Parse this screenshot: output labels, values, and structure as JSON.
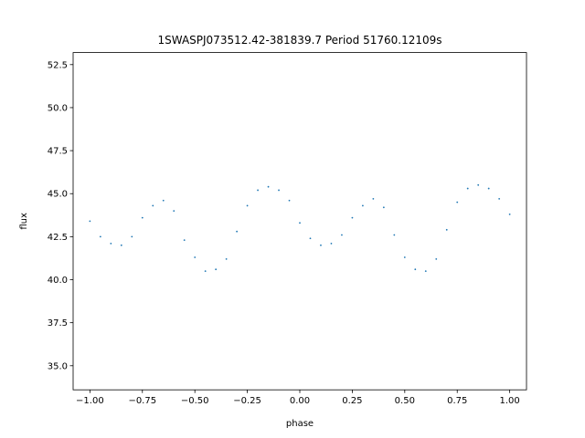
{
  "chart_data": {
    "type": "scatter",
    "title": "1SWASPJ073512.42-381839.7 Period 51760.12109s",
    "xlabel": "phase",
    "ylabel": "flux",
    "xlim": [
      -1.08,
      1.08
    ],
    "ylim": [
      33.6,
      53.2
    ],
    "xticks": [
      -1.0,
      -0.75,
      -0.5,
      -0.25,
      0.0,
      0.25,
      0.5,
      0.75,
      1.0
    ],
    "xtick_labels": [
      "−1.00",
      "−0.75",
      "−0.50",
      "−0.25",
      "0.00",
      "0.25",
      "0.50",
      "0.75",
      "1.00"
    ],
    "yticks": [
      35.0,
      37.5,
      40.0,
      42.5,
      45.0,
      47.5,
      50.0,
      52.5
    ],
    "ytick_labels": [
      "35.0",
      "37.5",
      "40.0",
      "42.5",
      "45.0",
      "47.5",
      "50.0",
      "52.5"
    ],
    "grid": false,
    "marker_color": "#1f77b4",
    "series": [
      {
        "x": [
          -1.0,
          -0.95,
          -0.9,
          -0.85,
          -0.8,
          -0.75,
          -0.7,
          -0.65,
          -0.6,
          -0.55,
          -0.5,
          -0.45,
          -0.4,
          -0.35,
          -0.3,
          -0.25,
          -0.2,
          -0.15,
          -0.1,
          -0.05,
          0.0,
          0.05,
          0.1,
          0.15,
          0.2,
          0.25,
          0.3,
          0.35,
          0.4,
          0.45,
          0.5,
          0.55,
          0.6,
          0.65,
          0.7,
          0.75,
          0.8,
          0.85,
          0.9,
          0.95,
          1.0
        ],
        "y": [
          43.4,
          42.5,
          42.1,
          42.0,
          42.5,
          43.6,
          44.3,
          44.6,
          44.0,
          42.3,
          41.3,
          40.5,
          40.6,
          41.2,
          42.8,
          44.3,
          45.2,
          45.4,
          45.2,
          44.6,
          43.3,
          42.4,
          42.0,
          42.1,
          42.6,
          43.6,
          44.3,
          44.7,
          44.2,
          42.6,
          41.3,
          40.6,
          40.5,
          41.2,
          42.9,
          44.5,
          45.3,
          45.5,
          45.3,
          44.7,
          43.8
        ]
      }
    ]
  }
}
